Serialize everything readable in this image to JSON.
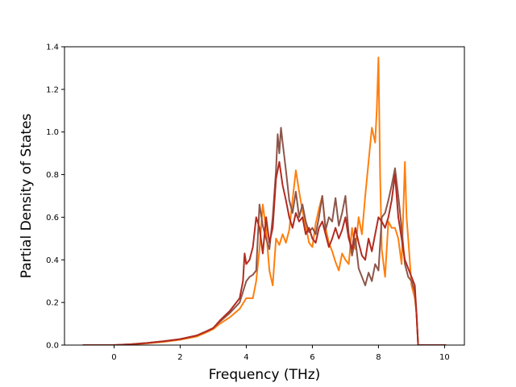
{
  "chart_data": {
    "type": "line",
    "title": "",
    "xlabel": "Frequency (THz)",
    "ylabel": "Partial Density of States",
    "xlim": [
      -1.5,
      10.6
    ],
    "ylim": [
      0.0,
      1.4
    ],
    "xticks": [
      0,
      2,
      4,
      6,
      8,
      10
    ],
    "yticks": [
      0.0,
      0.2,
      0.4,
      0.6,
      0.8,
      1.0,
      1.2,
      1.4
    ],
    "grid": false,
    "series": [
      {
        "color": "#ff7f0e",
        "x": [
          -0.95,
          0.0,
          0.5,
          1.0,
          1.5,
          2.0,
          2.5,
          2.8,
          3.0,
          3.2,
          3.5,
          3.8,
          4.0,
          4.2,
          4.3,
          4.4,
          4.5,
          4.6,
          4.7,
          4.8,
          4.9,
          5.0,
          5.1,
          5.2,
          5.3,
          5.4,
          5.5,
          5.6,
          5.7,
          5.8,
          5.9,
          6.0,
          6.1,
          6.2,
          6.3,
          6.4,
          6.5,
          6.6,
          6.7,
          6.8,
          6.9,
          7.0,
          7.1,
          7.2,
          7.3,
          7.4,
          7.5,
          7.6,
          7.7,
          7.8,
          7.9,
          7.95,
          8.0,
          8.05,
          8.1,
          8.2,
          8.3,
          8.4,
          8.5,
          8.6,
          8.7,
          8.8,
          8.85,
          8.9,
          9.0,
          9.1,
          9.15,
          9.2,
          9.5,
          10.05
        ],
        "y": [
          0,
          0,
          0.003,
          0.008,
          0.015,
          0.025,
          0.04,
          0.06,
          0.075,
          0.1,
          0.13,
          0.17,
          0.22,
          0.22,
          0.3,
          0.45,
          0.66,
          0.54,
          0.35,
          0.28,
          0.5,
          0.47,
          0.52,
          0.48,
          0.54,
          0.68,
          0.82,
          0.72,
          0.63,
          0.56,
          0.48,
          0.46,
          0.57,
          0.64,
          0.7,
          0.55,
          0.48,
          0.44,
          0.39,
          0.35,
          0.43,
          0.4,
          0.38,
          0.55,
          0.45,
          0.6,
          0.52,
          0.7,
          0.86,
          1.02,
          0.95,
          1.11,
          1.35,
          0.8,
          0.45,
          0.32,
          0.58,
          0.55,
          0.55,
          0.5,
          0.38,
          0.86,
          0.6,
          0.5,
          0.28,
          0.22,
          0.15,
          0.0,
          0,
          0
        ]
      },
      {
        "color": "#8c564b",
        "x": [
          -0.95,
          0.0,
          0.5,
          1.0,
          1.5,
          2.0,
          2.5,
          2.8,
          3.0,
          3.2,
          3.5,
          3.8,
          4.0,
          4.1,
          4.2,
          4.3,
          4.4,
          4.5,
          4.6,
          4.7,
          4.8,
          4.9,
          4.95,
          5.0,
          5.05,
          5.1,
          5.2,
          5.3,
          5.4,
          5.5,
          5.6,
          5.7,
          5.8,
          5.9,
          6.0,
          6.1,
          6.2,
          6.3,
          6.4,
          6.5,
          6.6,
          6.7,
          6.8,
          6.9,
          7.0,
          7.1,
          7.2,
          7.3,
          7.4,
          7.5,
          7.6,
          7.7,
          7.8,
          7.9,
          8.0,
          8.1,
          8.2,
          8.3,
          8.4,
          8.5,
          8.6,
          8.7,
          8.8,
          8.9,
          9.0,
          9.1,
          9.15,
          9.2,
          9.5,
          10.05
        ],
        "y": [
          0,
          0,
          0.004,
          0.01,
          0.018,
          0.028,
          0.045,
          0.065,
          0.08,
          0.11,
          0.15,
          0.2,
          0.3,
          0.32,
          0.33,
          0.35,
          0.66,
          0.56,
          0.5,
          0.45,
          0.6,
          0.82,
          0.99,
          0.9,
          1.02,
          0.95,
          0.82,
          0.68,
          0.62,
          0.72,
          0.6,
          0.66,
          0.58,
          0.53,
          0.55,
          0.52,
          0.6,
          0.7,
          0.54,
          0.6,
          0.58,
          0.69,
          0.56,
          0.62,
          0.7,
          0.52,
          0.42,
          0.5,
          0.36,
          0.32,
          0.28,
          0.34,
          0.3,
          0.38,
          0.35,
          0.6,
          0.62,
          0.68,
          0.75,
          0.83,
          0.7,
          0.55,
          0.38,
          0.32,
          0.3,
          0.25,
          0.15,
          0.0,
          0,
          0
        ]
      },
      {
        "color": "#b22b20",
        "x": [
          -0.95,
          0.0,
          0.5,
          1.0,
          1.5,
          2.0,
          2.5,
          2.8,
          3.0,
          3.2,
          3.5,
          3.8,
          3.9,
          3.95,
          4.0,
          4.1,
          4.2,
          4.3,
          4.4,
          4.5,
          4.6,
          4.7,
          4.8,
          4.9,
          5.0,
          5.1,
          5.2,
          5.3,
          5.4,
          5.5,
          5.6,
          5.7,
          5.8,
          5.9,
          6.0,
          6.1,
          6.2,
          6.3,
          6.4,
          6.5,
          6.6,
          6.7,
          6.8,
          6.9,
          7.0,
          7.1,
          7.2,
          7.3,
          7.4,
          7.5,
          7.6,
          7.7,
          7.8,
          7.9,
          8.0,
          8.1,
          8.2,
          8.3,
          8.4,
          8.5,
          8.6,
          8.7,
          8.8,
          8.9,
          9.0,
          9.1,
          9.15,
          9.2,
          9.5,
          10.05
        ],
        "y": [
          0,
          0,
          0.004,
          0.01,
          0.018,
          0.028,
          0.045,
          0.065,
          0.08,
          0.115,
          0.16,
          0.22,
          0.3,
          0.43,
          0.38,
          0.4,
          0.46,
          0.6,
          0.55,
          0.43,
          0.6,
          0.48,
          0.55,
          0.78,
          0.86,
          0.75,
          0.68,
          0.6,
          0.55,
          0.62,
          0.58,
          0.6,
          0.52,
          0.55,
          0.5,
          0.48,
          0.55,
          0.58,
          0.52,
          0.46,
          0.5,
          0.55,
          0.5,
          0.54,
          0.6,
          0.5,
          0.45,
          0.55,
          0.48,
          0.42,
          0.4,
          0.5,
          0.44,
          0.52,
          0.6,
          0.58,
          0.55,
          0.6,
          0.68,
          0.8,
          0.6,
          0.5,
          0.4,
          0.36,
          0.32,
          0.28,
          0.15,
          0.0,
          0,
          0
        ]
      }
    ]
  }
}
